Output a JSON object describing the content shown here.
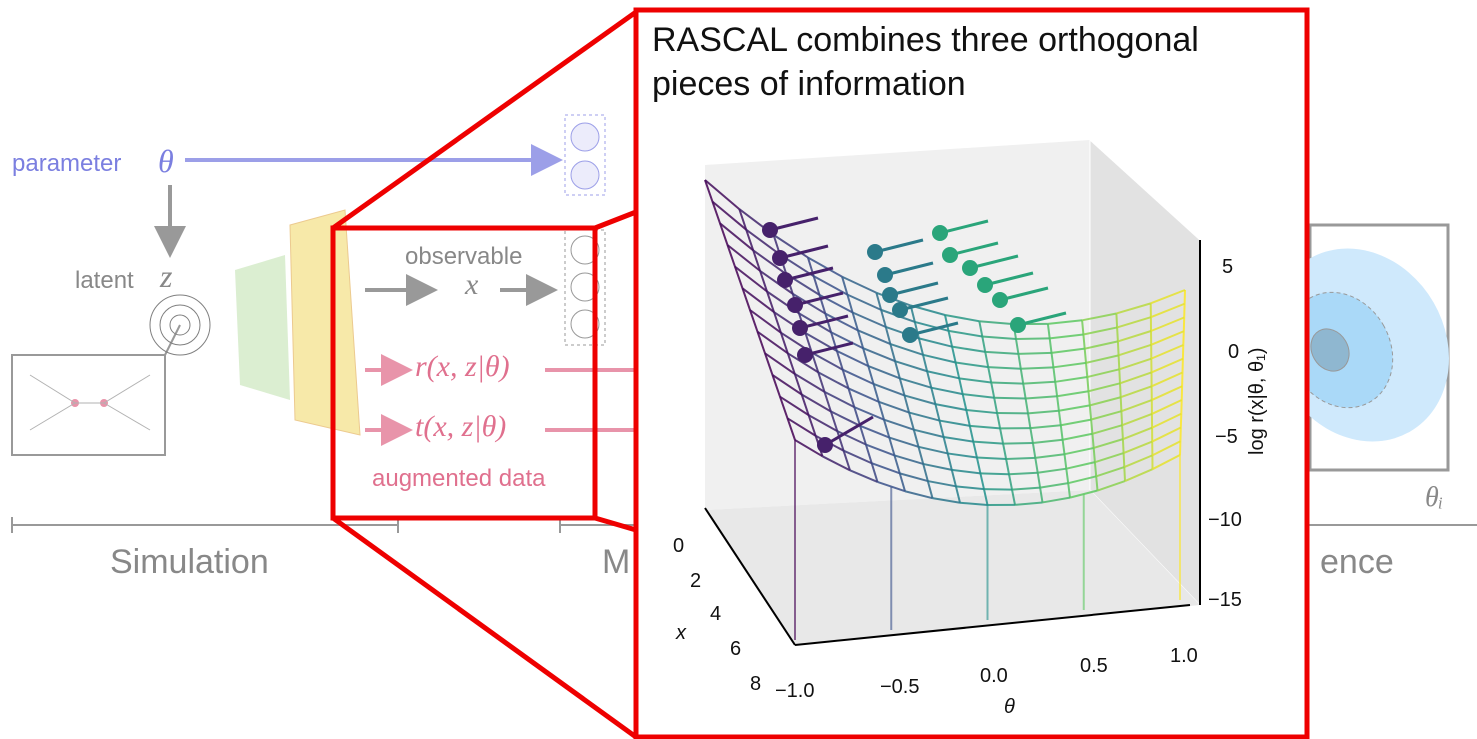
{
  "simulation": {
    "parameter_label": "parameter",
    "parameter_symbol": "θ",
    "latent_label": "latent",
    "latent_symbol": "z",
    "observable_label": "observable",
    "observable_symbol": "x",
    "r_label": "r(x, z|θ)",
    "t_label": "t(x, z|θ)",
    "augmented_label": "augmented data"
  },
  "stages": [
    "Simulation",
    "M",
    "ence"
  ],
  "inset": {
    "title": "RASCAL combines three orthogonal pieces of information",
    "x_axis_label": "x",
    "theta_axis_label": "θ",
    "z_axis_label": "log r(x|θ, θ₁)",
    "x_ticks": [
      "0",
      "2",
      "4",
      "6",
      "8"
    ],
    "theta_ticks": [
      "−1.0",
      "−0.5",
      "0.0",
      "0.5",
      "1.0"
    ],
    "z_ticks": [
      "5",
      "0",
      "−5",
      "−10",
      "−15"
    ]
  },
  "inference": {
    "axis_label": "θᵢ"
  }
}
